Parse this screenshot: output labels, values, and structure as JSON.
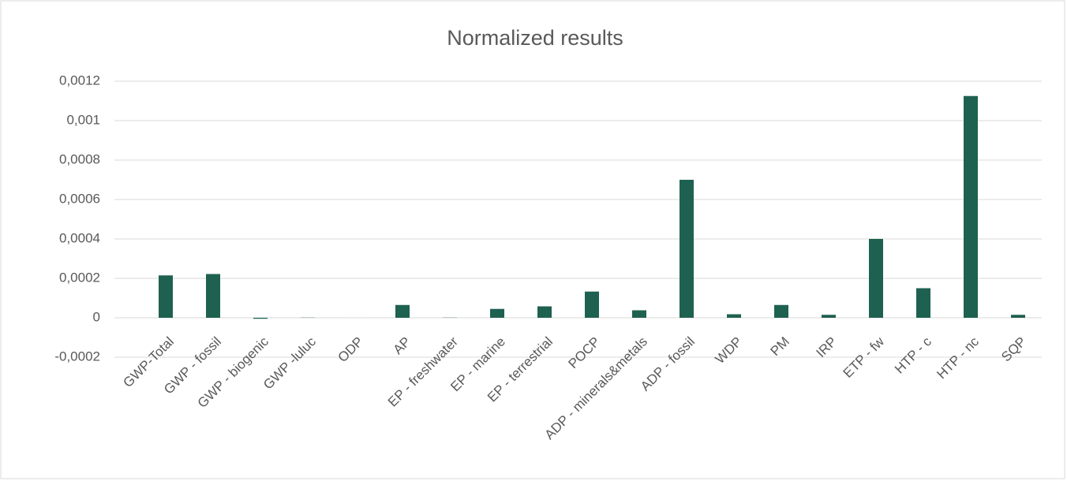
{
  "chart_data": {
    "type": "bar",
    "title": "Normalized results",
    "categories": [
      "GWP-Total",
      "GWP - fossil",
      "GWP - biogenic",
      "GWP -luluc",
      "ODP",
      "AP",
      "EP - freshwater",
      "EP - marine",
      "EP - terrestrial",
      "POCP",
      "ADP - minerals&metals",
      "ADP - fossil",
      "WDP",
      "PM",
      "IRP",
      "ETP - fw",
      "HTP - c",
      "HTP - nc",
      "SQP"
    ],
    "values": [
      0.000215,
      0.000222,
      -5e-06,
      1e-06,
      0,
      6.5e-05,
      1e-06,
      4.5e-05,
      5.8e-05,
      0.000133,
      3.8e-05,
      0.0007,
      1.8e-05,
      6.5e-05,
      1.5e-05,
      0.0004,
      0.00015,
      0.001125,
      1.5e-05
    ],
    "color": "#1f6150",
    "ylim": [
      -0.0002,
      0.0012
    ],
    "yticks": [
      {
        "value": -0.0002,
        "label": "-0,0002"
      },
      0,
      {
        "value": 0.0002,
        "label": "0,0002"
      },
      {
        "value": 0.0004,
        "label": "0,0004"
      },
      {
        "value": 0.0006,
        "label": "0,0006"
      },
      {
        "value": 0.0008,
        "label": "0,0008"
      },
      {
        "value": 0.001,
        "label": "0,001"
      },
      {
        "value": 0.0012,
        "label": "0,0012"
      }
    ],
    "grid": true
  }
}
